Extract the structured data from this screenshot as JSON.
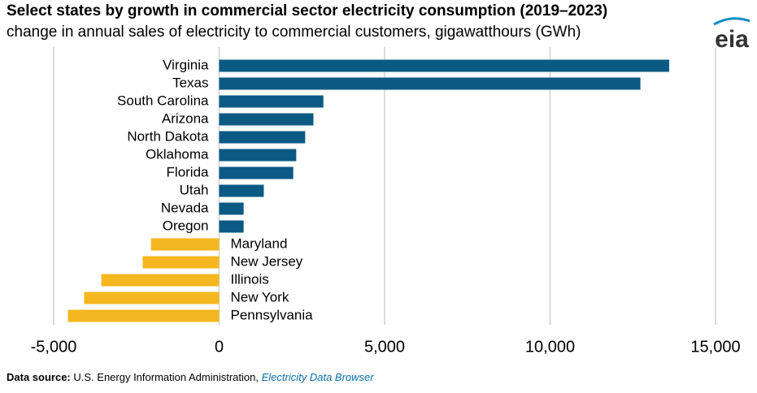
{
  "chart_data": {
    "type": "hbar",
    "title": "Select states by growth in commercial sector electricity consumption (2019–2023)",
    "subtitle": "change in annual sales of electricity to commercial customers, gigawatthours (GWh)",
    "logo": "eia",
    "categories": [
      "Virginia",
      "Texas",
      "South Carolina",
      "Arizona",
      "North Dakota",
      "Oklahoma",
      "Florida",
      "Utah",
      "Nevada",
      "Oregon",
      "Maryland",
      "New Jersey",
      "Illinois",
      "New York",
      "Pennsylvania"
    ],
    "values": [
      13600,
      12730,
      3150,
      2850,
      2600,
      2330,
      2240,
      1350,
      740,
      740,
      -2060,
      -2310,
      -3560,
      -4080,
      -4570
    ],
    "positive_color": "#0b5a84",
    "negative_color": "#f4b71f",
    "xlim": [
      -5000,
      15000
    ],
    "xticks": [
      {
        "value": -5000,
        "label": "-5,000"
      },
      0,
      {
        "value": 5000,
        "label": "5,000"
      },
      {
        "value": 10000,
        "label": "10,000"
      },
      {
        "value": 15000,
        "label": "15,000"
      }
    ],
    "grid": true,
    "source_label": "Data source:",
    "source_text": "U.S. Energy Information Administration,",
    "source_link": "Electricity Data Browser"
  }
}
